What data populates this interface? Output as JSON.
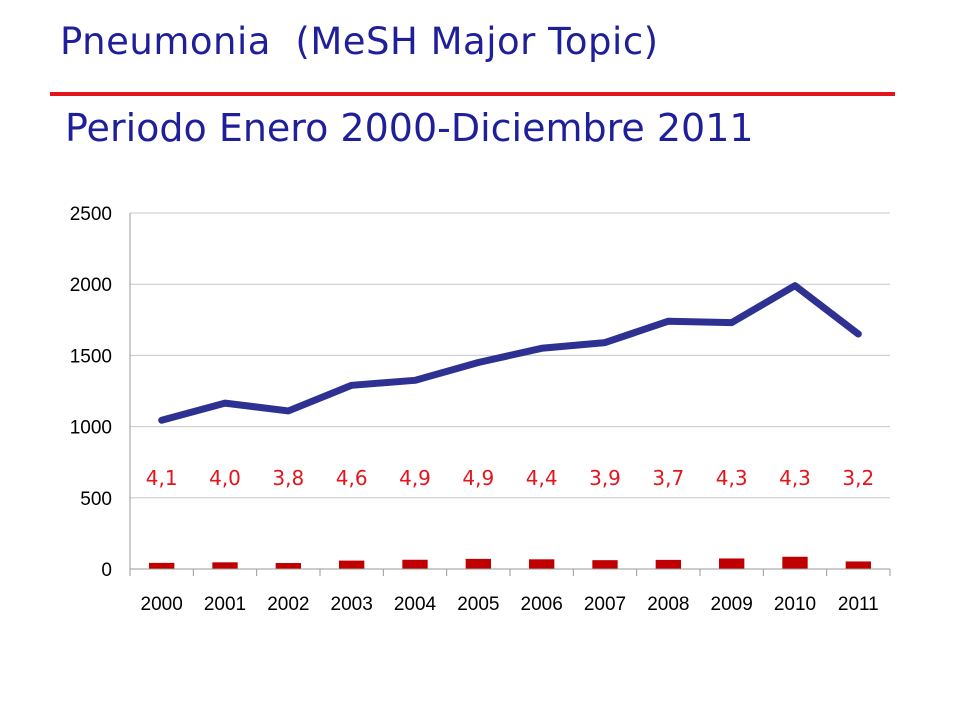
{
  "header": {
    "title": "Pneumonia  (MeSH Major Topic)",
    "subtitle": "Periodo Enero 2000-Diciembre 2011"
  },
  "colors": {
    "title": "#1f1f9a",
    "rule": "#e3141c",
    "line_series": "#2e3192",
    "bar_series": "#c00000",
    "annotation": "#e3141c",
    "grid": "#c8c8c8"
  },
  "chart_data": {
    "type": "bar",
    "categories": [
      "2000",
      "2001",
      "2002",
      "2003",
      "2004",
      "2005",
      "2006",
      "2007",
      "2008",
      "2009",
      "2010",
      "2011"
    ],
    "ylim": [
      0,
      2500
    ],
    "yticks": [
      "0",
      "500",
      "1000",
      "1500",
      "2000",
      "2500"
    ],
    "grid": true,
    "series": [
      {
        "type": "line",
        "values": [
          1045,
          1165,
          1110,
          1290,
          1325,
          1450,
          1550,
          1590,
          1740,
          1730,
          1990,
          1650
        ]
      },
      {
        "type": "bar",
        "values": [
          43,
          47,
          42,
          59,
          65,
          71,
          68,
          62,
          64,
          74,
          86,
          53
        ]
      }
    ],
    "annotations": [
      "4,1",
      "4,0",
      "3,8",
      "4,6",
      "4,9",
      "4,9",
      "4,4",
      "3,9",
      "3,7",
      "4,3",
      "4,3",
      "3,2"
    ]
  }
}
